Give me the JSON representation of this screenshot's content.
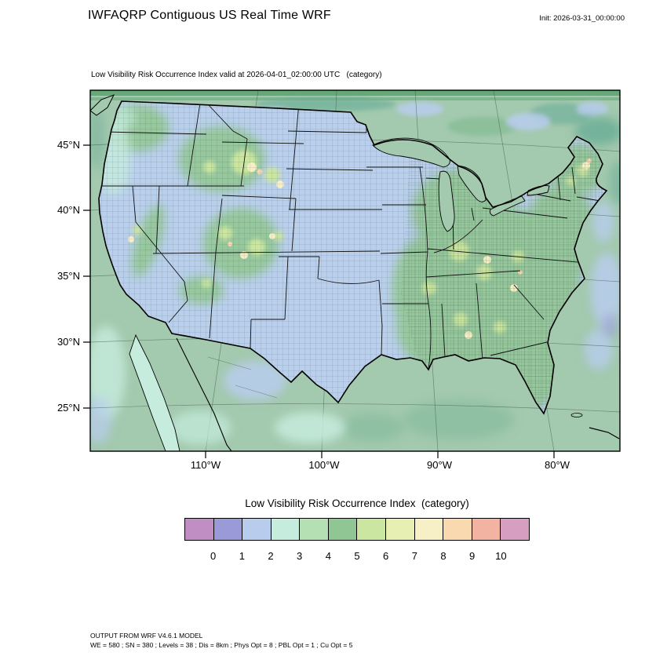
{
  "header": {
    "title": "IWFAQRP Contiguous US Real Time WRF",
    "init_label": "Init: 2026-03-31_00:00:00"
  },
  "map": {
    "subtitle": "Low Visibility Risk Occurrence Index valid at 2026-04-01_02:00:00 UTC   (category)",
    "yticks": [
      "45°N",
      "40°N",
      "35°N",
      "30°N",
      "25°N"
    ],
    "xticks": [
      "110°W",
      "100°W",
      "90°W",
      "80°W"
    ]
  },
  "colorbar": {
    "title": "Low Visibility Risk Occurrence Index  (category)",
    "tick_labels": [
      "0",
      "1",
      "2",
      "3",
      "4",
      "5",
      "6",
      "7",
      "8",
      "9",
      "10"
    ],
    "colors": [
      "#c18ec4",
      "#9a9ad9",
      "#b8cdee",
      "#c5ecdd",
      "#b4e0b4",
      "#8fc693",
      "#cbe6a0",
      "#e7f0b2",
      "#f7efc5",
      "#f8d9b0",
      "#f2b3a3",
      "#d69ec0"
    ]
  },
  "footer": {
    "line1": "OUTPUT FROM WRF V4.6.1 MODEL",
    "line2": "WE = 580 ; SN = 380 ; Levels = 38 ; Dis = 8km ; Phys Opt = 8 ; PBL Opt = 1 ; Cu Opt = 5"
  },
  "map_colors": {
    "sea": "#a3c9ae",
    "land_low": "#b9cfec",
    "land_green": "#96c79d"
  }
}
